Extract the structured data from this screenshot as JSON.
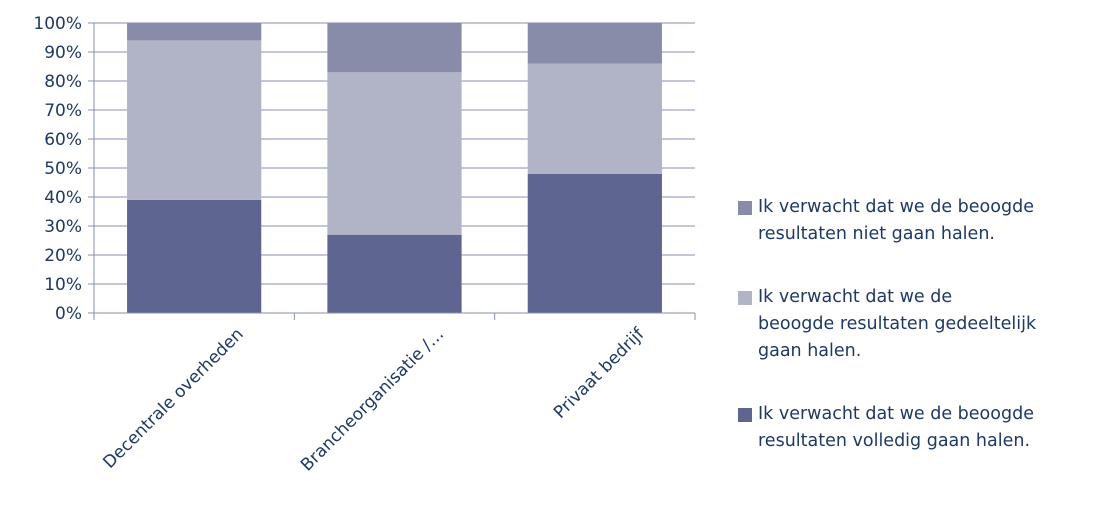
{
  "chart_data": {
    "type": "bar",
    "stacked": true,
    "percent": true,
    "categories": [
      "Decentrale overheden",
      "Brancheorganisatie /…",
      "Privaat bedrijf"
    ],
    "series": [
      {
        "name": "Ik verwacht dat we de beoogde resultaten volledig gaan halen.",
        "values": [
          39,
          27,
          48
        ],
        "color": "#5f6591"
      },
      {
        "name": "Ik verwacht dat we  de beoogde resultaten gedeeltelijk gaan halen.",
        "values": [
          55,
          56,
          38
        ],
        "color": "#b1b3c6"
      },
      {
        "name": "Ik verwacht dat we de beoogde resultaten niet gaan halen.",
        "values": [
          6,
          17,
          14
        ],
        "color": "#898ca9"
      }
    ],
    "ylim": [
      0,
      100
    ],
    "yticks": [
      "0%",
      "10%",
      "20%",
      "30%",
      "40%",
      "50%",
      "60%",
      "70%",
      "80%",
      "90%",
      "100%"
    ],
    "grid": true,
    "legend_position": "right"
  },
  "legend": {
    "items": [
      {
        "line1": "Ik verwacht dat we de beoogde",
        "line2": "resultaten niet gaan halen.",
        "line3": "",
        "color": "#898ca9"
      },
      {
        "line1": "Ik verwacht dat we  de",
        "line2": "beoogde resultaten gedeeltelijk",
        "line3": "gaan halen.",
        "color": "#b1b3c6"
      },
      {
        "line1": "Ik verwacht dat we de beoogde",
        "line2": "resultaten volledig gaan halen.",
        "line3": "",
        "color": "#5f6591"
      }
    ]
  }
}
